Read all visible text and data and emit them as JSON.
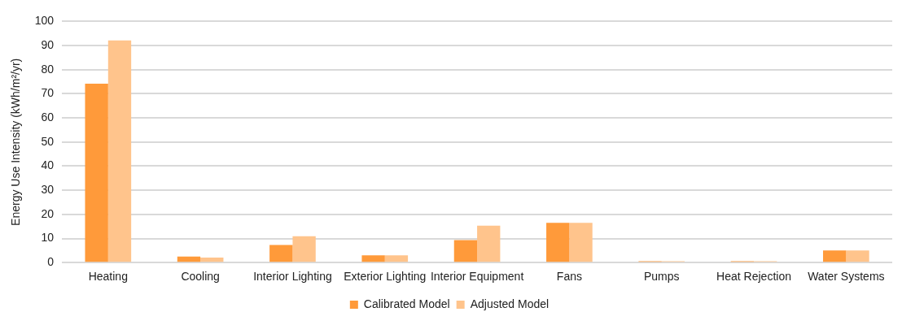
{
  "chart_data": {
    "type": "bar",
    "ylabel": "Energy Use Intensity (kWh/m²/yr)",
    "categories": [
      "Heating",
      "Cooling",
      "Interior Lighting",
      "Exterior Lighting",
      "Interior Equipment",
      "Fans",
      "Pumps",
      "Heat Rejection",
      "Water Systems"
    ],
    "series": [
      {
        "name": "Calibrated Model",
        "color": "#ff9a3a",
        "values": [
          74.2,
          2.5,
          7.3,
          3.0,
          9.3,
          16.5,
          0.6,
          0.6,
          5.0
        ]
      },
      {
        "name": "Adjusted Model",
        "color": "#ffc48c",
        "values": [
          92.1,
          2.1,
          10.9,
          3.0,
          15.3,
          16.5,
          0.6,
          0.6,
          5.0
        ]
      }
    ],
    "ylim": [
      0,
      100
    ],
    "yticks": [
      0,
      10,
      20,
      30,
      40,
      50,
      60,
      70,
      80,
      90,
      100
    ],
    "grid": "y",
    "legend": "bottom"
  }
}
